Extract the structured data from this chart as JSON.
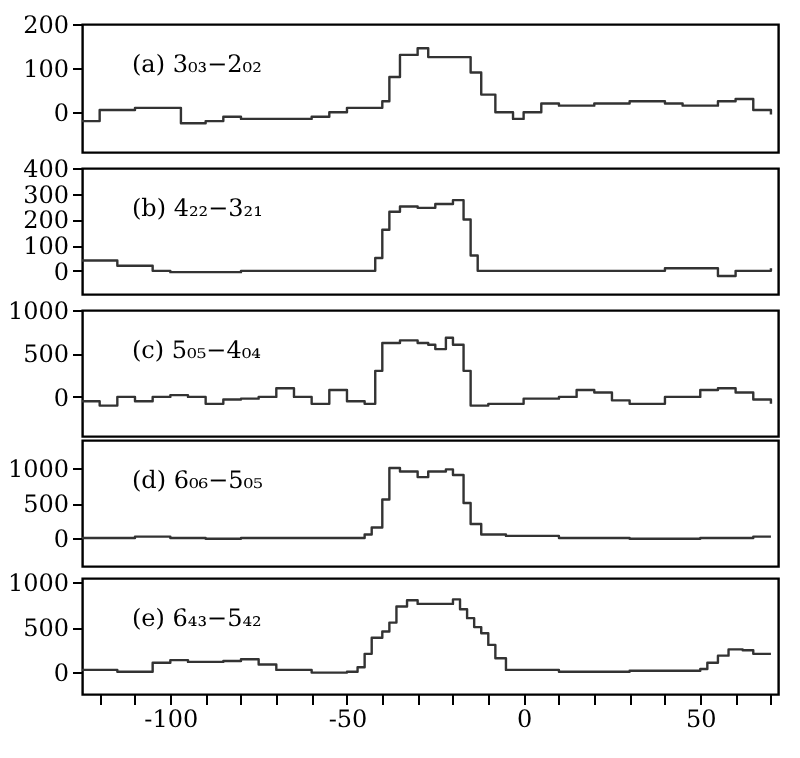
{
  "chart_data": [
    {
      "type": "step",
      "annotations": [
        "(a) 3₀₃−2₀₂"
      ],
      "xlim": [
        -125,
        72
      ],
      "ylim": [
        -90,
        200
      ],
      "yticks": [
        0,
        100,
        200
      ],
      "tick_labels": "y",
      "grid": false,
      "series": [
        {
          "color": "#333333",
          "x": [
            -125,
            -120,
            -110,
            -100,
            -97,
            -90,
            -85,
            -80,
            -70,
            -60,
            -55,
            -50,
            -45,
            -40,
            -38,
            -35,
            -30,
            -27,
            -20,
            -15,
            -12,
            -8,
            -3,
            0,
            5,
            10,
            20,
            30,
            40,
            45,
            50,
            55,
            60,
            65,
            70
          ],
          "values": [
            -20,
            5,
            10,
            10,
            -25,
            -20,
            -10,
            -15,
            -15,
            -10,
            0,
            10,
            10,
            25,
            80,
            130,
            145,
            125,
            125,
            90,
            40,
            0,
            -15,
            0,
            20,
            15,
            20,
            25,
            20,
            15,
            15,
            25,
            30,
            5,
            -5
          ]
        }
      ]
    },
    {
      "type": "step",
      "annotations": [
        "(b) 4₂₂−3₂₁"
      ],
      "xlim": [
        -125,
        72
      ],
      "ylim": [
        -90,
        400
      ],
      "yticks": [
        0,
        100,
        200,
        300,
        400
      ],
      "tick_labels": "y",
      "grid": false,
      "series": [
        {
          "color": "#333333",
          "x": [
            -125,
            -115,
            -105,
            -100,
            -80,
            -60,
            -50,
            -45,
            -42,
            -40,
            -38,
            -35,
            -30,
            -25,
            -20,
            -17,
            -15,
            -13,
            0,
            20,
            40,
            55,
            60,
            70
          ],
          "values": [
            40,
            20,
            0,
            -5,
            0,
            0,
            0,
            0,
            50,
            160,
            230,
            250,
            245,
            260,
            275,
            200,
            60,
            0,
            0,
            0,
            10,
            -20,
            0,
            10
          ]
        }
      ]
    },
    {
      "type": "step",
      "annotations": [
        "(c) 5₀₅−4₀₄"
      ],
      "xlim": [
        -125,
        72
      ],
      "ylim": [
        -450,
        1000
      ],
      "yticks": [
        0,
        500,
        1000
      ],
      "tick_labels": "y",
      "grid": false,
      "series": [
        {
          "color": "#333333",
          "x": [
            -125,
            -120,
            -115,
            -110,
            -105,
            -100,
            -95,
            -90,
            -85,
            -80,
            -75,
            -70,
            -65,
            -60,
            -55,
            -50,
            -45,
            -42,
            -40,
            -35,
            -30,
            -27,
            -25,
            -22,
            -20,
            -17,
            -15,
            -10,
            0,
            10,
            15,
            20,
            25,
            30,
            40,
            50,
            55,
            60,
            65,
            70
          ],
          "values": [
            -50,
            -100,
            0,
            -50,
            0,
            20,
            0,
            -80,
            -30,
            -20,
            0,
            100,
            0,
            -80,
            80,
            -50,
            -80,
            300,
            620,
            650,
            620,
            600,
            550,
            680,
            600,
            300,
            -100,
            -80,
            -20,
            0,
            80,
            50,
            -40,
            -80,
            0,
            80,
            100,
            50,
            -30,
            -80
          ]
        }
      ]
    },
    {
      "type": "step",
      "annotations": [
        "(d) 6₀₆−5₀₅"
      ],
      "xlim": [
        -125,
        72
      ],
      "ylim": [
        -400,
        1400
      ],
      "yticks": [
        0,
        500,
        1000
      ],
      "tick_labels": "y",
      "grid": false,
      "series": [
        {
          "color": "#333333",
          "x": [
            -125,
            -110,
            -100,
            -90,
            -80,
            -60,
            -48,
            -45,
            -43,
            -40,
            -38,
            -35,
            -30,
            -27,
            -22,
            -20,
            -17,
            -15,
            -12,
            -5,
            10,
            30,
            50,
            65,
            70
          ],
          "values": [
            0,
            20,
            0,
            -10,
            0,
            0,
            0,
            50,
            150,
            550,
            1000,
            950,
            870,
            950,
            980,
            900,
            500,
            200,
            50,
            30,
            0,
            -10,
            0,
            20,
            20
          ]
        }
      ]
    },
    {
      "type": "step",
      "annotations": [
        "(e) 6₄₃−5₄₂"
      ],
      "xlim": [
        -125,
        72
      ],
      "ylim": [
        -250,
        1050
      ],
      "yticks": [
        0,
        500,
        1000
      ],
      "xticks": [
        {
          "value": -120,
          "label": null
        },
        {
          "value": -110,
          "label": null
        },
        -100,
        {
          "value": -90,
          "label": null
        },
        {
          "value": -80,
          "label": null
        },
        {
          "value": -70,
          "label": null
        },
        {
          "value": -60,
          "label": null
        },
        -50,
        {
          "value": -40,
          "label": null
        },
        {
          "value": -30,
          "label": null
        },
        {
          "value": -20,
          "label": null
        },
        {
          "value": -10,
          "label": null
        },
        0,
        {
          "value": 10,
          "label": null
        },
        {
          "value": 20,
          "label": null
        },
        {
          "value": 30,
          "label": null
        },
        {
          "value": 40,
          "label": null
        },
        50,
        {
          "value": 60,
          "label": null
        },
        {
          "value": 70,
          "label": null
        }
      ],
      "grid": false,
      "series": [
        {
          "color": "#333333",
          "x": [
            -125,
            -115,
            -107,
            -105,
            -100,
            -95,
            -85,
            -80,
            -75,
            -70,
            -60,
            -50,
            -47,
            -45,
            -43,
            -40,
            -38,
            -36,
            -33,
            -30,
            -25,
            -20,
            -18,
            -16,
            -14,
            -12,
            -10,
            -8,
            -5,
            10,
            30,
            50,
            52,
            55,
            58,
            62,
            65,
            70
          ],
          "values": [
            20,
            0,
            0,
            100,
            130,
            110,
            120,
            140,
            80,
            20,
            -10,
            0,
            50,
            200,
            380,
            450,
            550,
            730,
            800,
            760,
            760,
            810,
            700,
            600,
            500,
            430,
            300,
            150,
            20,
            0,
            10,
            30,
            100,
            180,
            250,
            240,
            200,
            200
          ]
        }
      ]
    }
  ]
}
